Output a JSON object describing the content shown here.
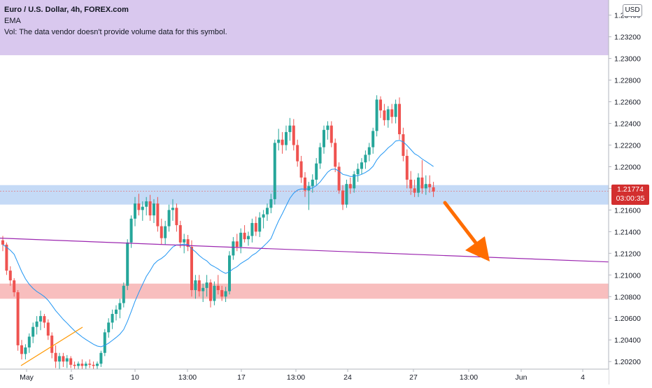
{
  "legend": {
    "title": "Euro / U.S. Dollar, 4h, FOREX.com",
    "indicator": "EMA",
    "volume_note": "Vol: The data vendor doesn't provide volume data for this symbol."
  },
  "currency_label": "USD",
  "price_badge": {
    "price": "1.21774",
    "countdown": "03:00:35"
  },
  "colors": {
    "up": "#26a69a",
    "down": "#ef5350",
    "ema": "#2196f3",
    "support_zone": "#bbd4f5",
    "demand_zone": "#f7b3b3",
    "header_zone": "#d9c8ee",
    "trendline": "#9c27b0",
    "arrow": "#ff6d00",
    "short_trendline": "#ff9800"
  },
  "chart_data": {
    "type": "candlestick",
    "symbol": "EURUSD",
    "timeframe": "4h",
    "ylim": [
      1.2013,
      1.2354
    ],
    "y_ticks": [
      "1.20200",
      "1.20400",
      "1.20600",
      "1.20800",
      "1.21000",
      "1.21200",
      "1.21400",
      "1.21600",
      "1.21800",
      "1.22000",
      "1.22200",
      "1.22400",
      "1.22600",
      "1.22800",
      "1.23000",
      "1.23200",
      "1.23400"
    ],
    "x_ticks": [
      "May",
      "5",
      "10",
      "13:00",
      "17",
      "13:00",
      "24",
      "13:00",
      "27",
      "13:00",
      "Jun",
      "4"
    ],
    "zones": [
      {
        "name": "support",
        "from": 1.2165,
        "to": 1.2183
      },
      {
        "name": "demand",
        "from": 1.2078,
        "to": 1.2092
      },
      {
        "name": "top",
        "from": 1.2303,
        "to": 1.2354
      }
    ],
    "trendline": {
      "from": 1.2134,
      "to": 1.2112
    },
    "last_price": 1.21774,
    "candles": [
      [
        1.2132,
        1.2136,
        1.2122,
        1.2128
      ],
      [
        1.2128,
        1.213,
        1.21,
        1.2104
      ],
      [
        1.2104,
        1.2108,
        1.209,
        1.2095
      ],
      [
        1.2095,
        1.2097,
        1.208,
        1.2084
      ],
      [
        1.2084,
        1.2086,
        1.203,
        1.2035
      ],
      [
        1.2035,
        1.204,
        1.2022,
        1.2027
      ],
      [
        1.2027,
        1.2036,
        1.2022,
        1.2033
      ],
      [
        1.2033,
        1.2046,
        1.2028,
        1.2043
      ],
      [
        1.2043,
        1.2056,
        1.2037,
        1.2052
      ],
      [
        1.2052,
        1.2062,
        1.2045,
        1.2057
      ],
      [
        1.2057,
        1.2067,
        1.2049,
        1.2062
      ],
      [
        1.2062,
        1.2064,
        1.2051,
        1.2056
      ],
      [
        1.2056,
        1.2059,
        1.204,
        1.2044
      ],
      [
        1.2044,
        1.2047,
        1.2023,
        1.2028
      ],
      [
        1.2028,
        1.2035,
        1.2014,
        1.202
      ],
      [
        1.202,
        1.2028,
        1.2013,
        1.2025
      ],
      [
        1.2025,
        1.2028,
        1.2015,
        1.202
      ],
      [
        1.202,
        1.2026,
        1.2014,
        1.2023
      ],
      [
        1.2023,
        1.2025,
        1.2014,
        1.2017
      ],
      [
        1.2017,
        1.202,
        1.2013,
        1.2016
      ],
      [
        1.2016,
        1.202,
        1.2013,
        1.2018
      ],
      [
        1.2018,
        1.2022,
        1.2013,
        1.2016
      ],
      [
        1.2016,
        1.202,
        1.2013,
        1.2018
      ],
      [
        1.2018,
        1.2022,
        1.2014,
        1.2017
      ],
      [
        1.2017,
        1.202,
        1.2013,
        1.2016
      ],
      [
        1.2016,
        1.202,
        1.2013,
        1.2018
      ],
      [
        1.2018,
        1.203,
        1.2015,
        1.2028
      ],
      [
        1.2028,
        1.205,
        1.2025,
        1.2047
      ],
      [
        1.2047,
        1.206,
        1.2042,
        1.2056
      ],
      [
        1.2056,
        1.2068,
        1.205,
        1.2064
      ],
      [
        1.2064,
        1.2072,
        1.2058,
        1.2068
      ],
      [
        1.2068,
        1.2078,
        1.206,
        1.2074
      ],
      [
        1.2074,
        1.2093,
        1.207,
        1.209
      ],
      [
        1.209,
        1.2133,
        1.2086,
        1.213
      ],
      [
        1.213,
        1.2155,
        1.2125,
        1.2152
      ],
      [
        1.2152,
        1.2172,
        1.2145,
        1.2166
      ],
      [
        1.2166,
        1.2175,
        1.2155,
        1.216
      ],
      [
        1.216,
        1.2168,
        1.215,
        1.2163
      ],
      [
        1.2163,
        1.2172,
        1.2155,
        1.2168
      ],
      [
        1.2168,
        1.2174,
        1.215,
        1.2155
      ],
      [
        1.2155,
        1.217,
        1.2148,
        1.2166
      ],
      [
        1.2166,
        1.2172,
        1.214,
        1.2145
      ],
      [
        1.2145,
        1.2152,
        1.2128,
        1.2134
      ],
      [
        1.2134,
        1.215,
        1.2128,
        1.2145
      ],
      [
        1.2145,
        1.2165,
        1.214,
        1.216
      ],
      [
        1.216,
        1.217,
        1.215,
        1.2162
      ],
      [
        1.2162,
        1.2166,
        1.214,
        1.2146
      ],
      [
        1.2146,
        1.215,
        1.2125,
        1.213
      ],
      [
        1.213,
        1.2138,
        1.212,
        1.2133
      ],
      [
        1.2133,
        1.2137,
        1.2122,
        1.2126
      ],
      [
        1.2126,
        1.2132,
        1.208,
        1.2086
      ],
      [
        1.2086,
        1.21,
        1.2078,
        1.2095
      ],
      [
        1.2095,
        1.21,
        1.208,
        1.2085
      ],
      [
        1.2085,
        1.2092,
        1.2075,
        1.2088
      ],
      [
        1.2088,
        1.21,
        1.208,
        1.2093
      ],
      [
        1.2093,
        1.2096,
        1.207,
        1.2076
      ],
      [
        1.2076,
        1.2094,
        1.2072,
        1.209
      ],
      [
        1.209,
        1.21,
        1.2082,
        1.2086
      ],
      [
        1.2086,
        1.209,
        1.2076,
        1.208
      ],
      [
        1.208,
        1.2089,
        1.2075,
        1.2085
      ],
      [
        1.2085,
        1.2122,
        1.2082,
        1.2118
      ],
      [
        1.2118,
        1.2135,
        1.2114,
        1.2131
      ],
      [
        1.2131,
        1.2138,
        1.2122,
        1.2126
      ],
      [
        1.2126,
        1.2143,
        1.212,
        1.2139
      ],
      [
        1.2139,
        1.2146,
        1.213,
        1.2133
      ],
      [
        1.2133,
        1.214,
        1.2127,
        1.2136
      ],
      [
        1.2136,
        1.2152,
        1.213,
        1.2148
      ],
      [
        1.2148,
        1.2154,
        1.2136,
        1.214
      ],
      [
        1.214,
        1.2158,
        1.2135,
        1.2153
      ],
      [
        1.2153,
        1.216,
        1.2143,
        1.2156
      ],
      [
        1.2156,
        1.2166,
        1.215,
        1.2162
      ],
      [
        1.2162,
        1.2175,
        1.2157,
        1.217
      ],
      [
        1.217,
        1.2225,
        1.2165,
        1.2222
      ],
      [
        1.2222,
        1.2235,
        1.2215,
        1.2225
      ],
      [
        1.2225,
        1.2232,
        1.2212,
        1.222
      ],
      [
        1.222,
        1.2238,
        1.2215,
        1.2232
      ],
      [
        1.2232,
        1.2245,
        1.2224,
        1.2238
      ],
      [
        1.2238,
        1.2244,
        1.2215,
        1.222
      ],
      [
        1.222,
        1.2225,
        1.22,
        1.2205
      ],
      [
        1.2205,
        1.221,
        1.2185,
        1.219
      ],
      [
        1.219,
        1.2195,
        1.2172,
        1.2178
      ],
      [
        1.2178,
        1.2186,
        1.216,
        1.2182
      ],
      [
        1.2182,
        1.2193,
        1.2176,
        1.2188
      ],
      [
        1.2188,
        1.2208,
        1.2183,
        1.2203
      ],
      [
        1.2203,
        1.2222,
        1.2198,
        1.2218
      ],
      [
        1.2218,
        1.2238,
        1.2212,
        1.2234
      ],
      [
        1.2234,
        1.2242,
        1.2225,
        1.2238
      ],
      [
        1.2238,
        1.2242,
        1.2218,
        1.2222
      ],
      [
        1.2222,
        1.2226,
        1.2195,
        1.22
      ],
      [
        1.22,
        1.2204,
        1.2175,
        1.2178
      ],
      [
        1.2178,
        1.2183,
        1.216,
        1.2165
      ],
      [
        1.2165,
        1.2188,
        1.2162,
        1.2184
      ],
      [
        1.2184,
        1.219,
        1.2175,
        1.218
      ],
      [
        1.218,
        1.2196,
        1.2176,
        1.2193
      ],
      [
        1.2193,
        1.2203,
        1.2186,
        1.2198
      ],
      [
        1.2198,
        1.2208,
        1.2193,
        1.2204
      ],
      [
        1.2204,
        1.2215,
        1.2198,
        1.2211
      ],
      [
        1.2211,
        1.2222,
        1.2205,
        1.2218
      ],
      [
        1.2218,
        1.2236,
        1.2212,
        1.2233
      ],
      [
        1.2233,
        1.2266,
        1.2228,
        1.2262
      ],
      [
        1.2262,
        1.2265,
        1.2245,
        1.2252
      ],
      [
        1.2252,
        1.2258,
        1.2238,
        1.2243
      ],
      [
        1.2243,
        1.2256,
        1.2236,
        1.2253
      ],
      [
        1.2253,
        1.2258,
        1.224,
        1.2246
      ],
      [
        1.2246,
        1.2262,
        1.224,
        1.2258
      ],
      [
        1.2258,
        1.2264,
        1.2225,
        1.223
      ],
      [
        1.223,
        1.2236,
        1.2205,
        1.221
      ],
      [
        1.221,
        1.2216,
        1.218,
        1.2188
      ],
      [
        1.2188,
        1.2196,
        1.2174,
        1.218
      ],
      [
        1.218,
        1.2188,
        1.2172,
        1.2176
      ],
      [
        1.2176,
        1.2194,
        1.2172,
        1.219
      ],
      [
        1.219,
        1.2206,
        1.2175,
        1.218
      ],
      [
        1.218,
        1.2192,
        1.2174,
        1.2184
      ],
      [
        1.2184,
        1.2192,
        1.2176,
        1.2181
      ],
      [
        1.2181,
        1.2186,
        1.2172,
        1.2177
      ]
    ]
  }
}
